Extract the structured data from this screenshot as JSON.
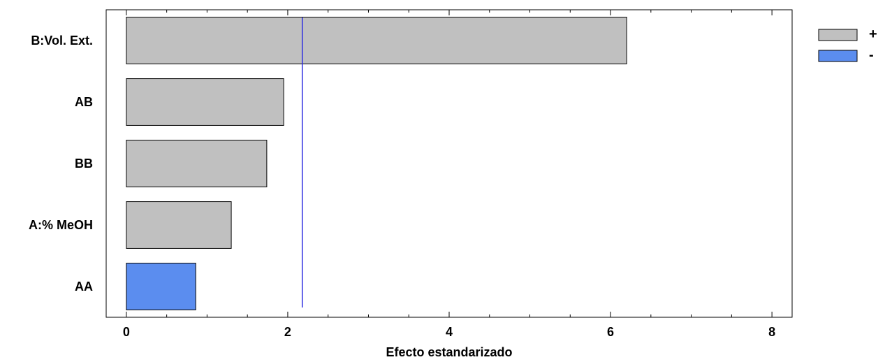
{
  "chart_data": {
    "type": "bar",
    "orientation": "horizontal",
    "categories": [
      "B:Vol. Ext.",
      "AB",
      "BB",
      "A:% MeOH",
      "AA"
    ],
    "values": [
      6.2,
      1.95,
      1.74,
      1.3,
      0.86
    ],
    "signs": [
      "+",
      "+",
      "+",
      "+",
      "-"
    ],
    "xlabel": "Efecto estandarizado",
    "xlim": [
      -0.25,
      8.25
    ],
    "xticks": [
      0,
      2,
      4,
      6,
      8
    ],
    "reference_line": 2.18,
    "legend": [
      {
        "label": "+",
        "color": "#c0c0c0"
      },
      {
        "label": "-",
        "color": "#5b8def"
      }
    ],
    "legend_position": "right",
    "grid": false,
    "colors": {
      "positive": "#c0c0c0",
      "negative": "#5b8def",
      "reference": "#2d2de0"
    }
  }
}
